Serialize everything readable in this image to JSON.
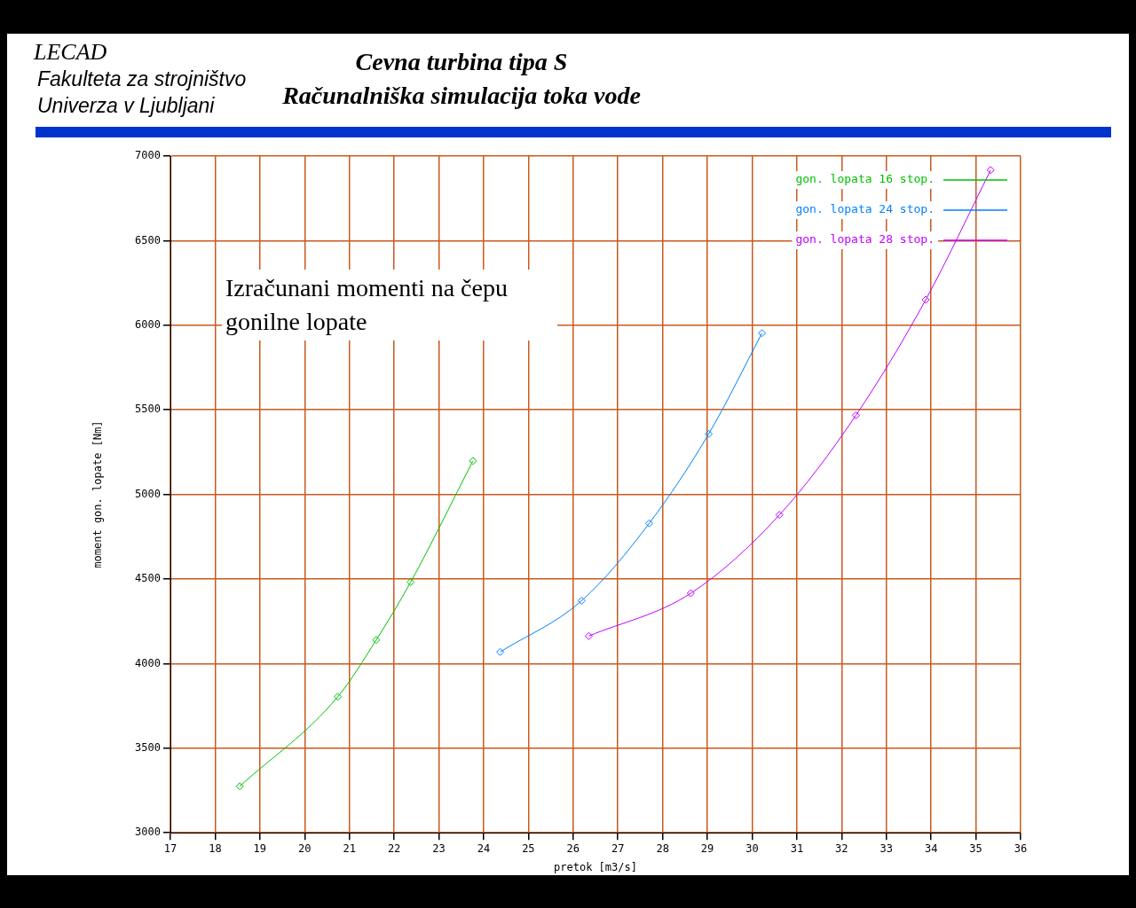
{
  "chart_data": {
    "type": "line",
    "title": "Cevna turbina tipa S",
    "subtitle": "Računalniška simulacija toka vode",
    "xlabel": "pretok [m3/s]",
    "ylabel": "moment gon. lopate [Nm]",
    "annotations": [
      "LECAD",
      "Fakulteta za strojništvo",
      "Univerza v Ljubljani",
      "Izračunani momenti na čepu gonilne lopate"
    ],
    "series": [
      {
        "name": "gon. lopata 16 stop.",
        "color": "#00c000",
        "x": [
          18.55,
          20.74,
          21.6,
          22.37,
          23.76
        ],
        "values": [
          3275,
          3804,
          4140,
          4482,
          5198
        ]
      },
      {
        "name": "gon. lopata 24 stop.",
        "color": "#0080ff",
        "x": [
          24.37,
          26.19,
          27.7,
          29.03,
          30.22
        ],
        "values": [
          4069,
          4372,
          4829,
          5358,
          5953
        ]
      },
      {
        "name": "gon. lopata 28 stop.",
        "color": "#c000ff",
        "x": [
          26.35,
          28.63,
          30.61,
          32.32,
          33.88,
          35.33
        ],
        "values": [
          4163,
          4416,
          4879,
          5468,
          6151,
          6917
        ]
      }
    ],
    "xlim": [
      17,
      36
    ],
    "xticks": [
      17,
      18,
      19,
      20,
      21,
      22,
      23,
      24,
      25,
      26,
      27,
      28,
      29,
      30,
      31,
      32,
      33,
      34,
      35,
      36
    ],
    "ylim": [
      3000,
      7000
    ],
    "yticks": [
      3000,
      3500,
      4000,
      4500,
      5000,
      5500,
      6000,
      6500,
      7000
    ],
    "grid": true,
    "legend": "top right",
    "marker": "diamond",
    "line_style": "solid"
  }
}
